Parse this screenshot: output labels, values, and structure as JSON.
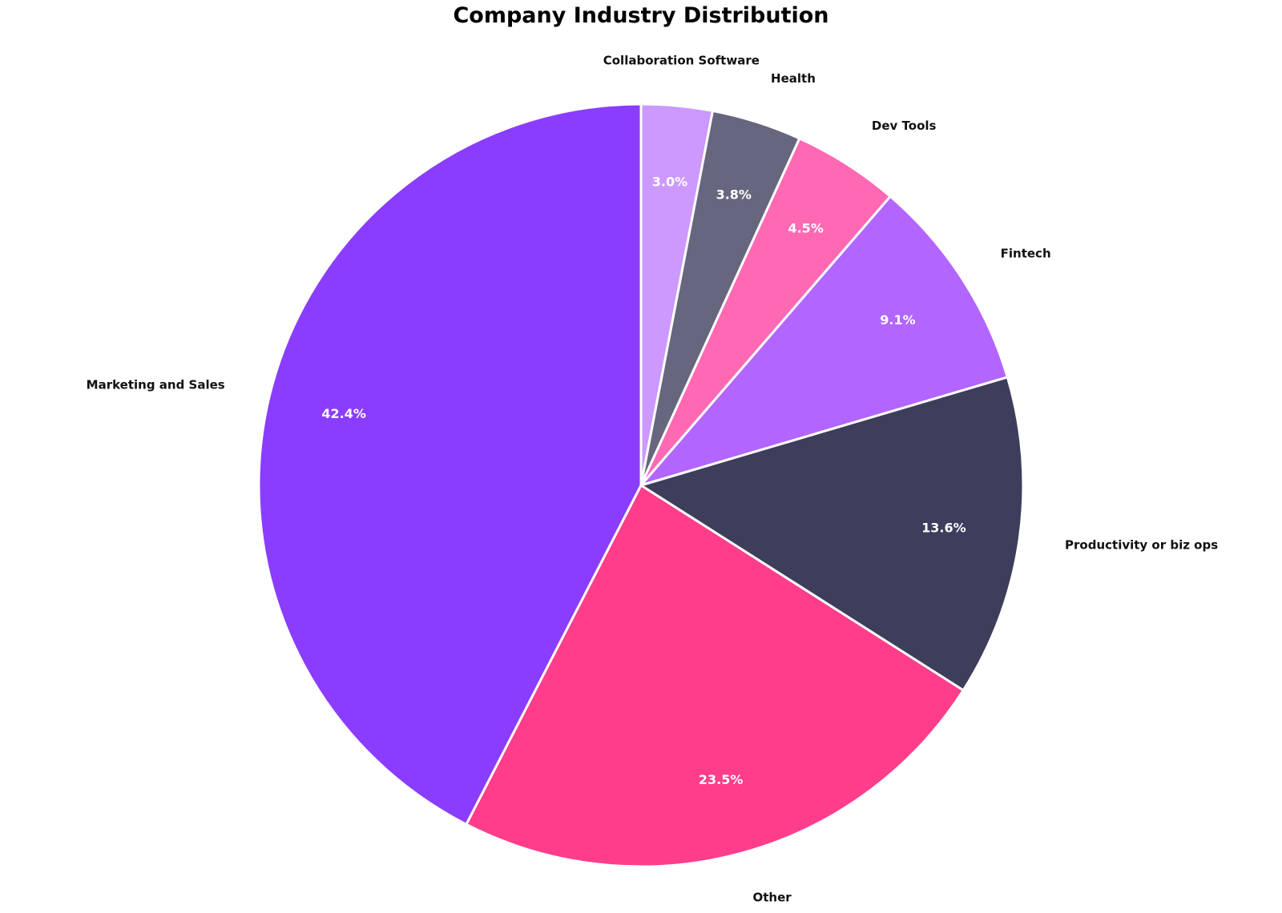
{
  "chart_data": {
    "type": "pie",
    "title": "Company Industry Distribution",
    "start_angle_deg": 90,
    "direction": "clockwise",
    "slices": [
      {
        "label": "Collaboration Software",
        "value": 3.0,
        "pct_label": "3.0%",
        "color": "#CC99FF"
      },
      {
        "label": "Health",
        "value": 3.8,
        "pct_label": "3.8%",
        "color": "#66667E"
      },
      {
        "label": "Dev Tools",
        "value": 4.5,
        "pct_label": "4.5%",
        "color": "#FF69B4"
      },
      {
        "label": "Fintech",
        "value": 9.1,
        "pct_label": "9.1%",
        "color": "#B266FF"
      },
      {
        "label": "Productivity or biz ops",
        "value": 13.6,
        "pct_label": "13.6%",
        "color": "#3D3D5C"
      },
      {
        "label": "Other",
        "value": 23.5,
        "pct_label": "23.5%",
        "color": "#FF3D8B"
      },
      {
        "label": "Marketing and Sales",
        "value": 42.4,
        "pct_label": "42.4%",
        "color": "#8A3DFF"
      }
    ],
    "legend": "none"
  }
}
